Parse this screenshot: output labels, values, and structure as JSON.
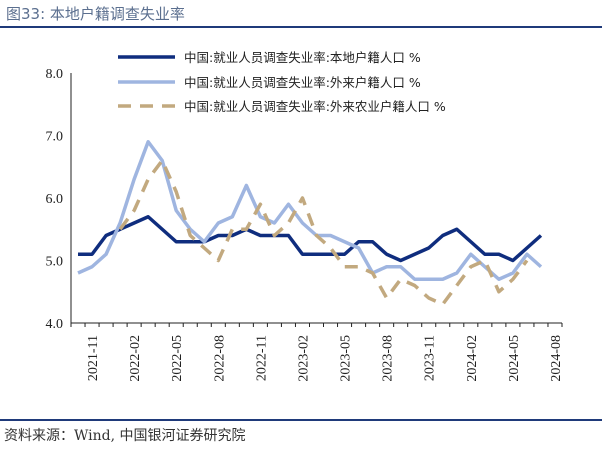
{
  "header": {
    "title": "图33:  本地户籍调查失业率"
  },
  "footer": {
    "source": "资料来源：Wind,  中国银河证券研究院"
  },
  "chart_data": {
    "type": "line",
    "title": "图33:  本地户籍调查失业率",
    "xlabel": "",
    "ylabel": "",
    "ylim": [
      4.0,
      8.0
    ],
    "yticks": [
      "4.0",
      "5.0",
      "6.0",
      "7.0",
      "8.0"
    ],
    "xtick_labels": [
      "2021-11",
      "2022-02",
      "2022-05",
      "2022-08",
      "2022-11",
      "2023-02",
      "2023-05",
      "2023-08",
      "2023-11",
      "2024-02",
      "2024-05",
      "2024-08"
    ],
    "x": [
      "2021-10",
      "2021-11",
      "2021-12",
      "2022-01",
      "2022-02",
      "2022-03",
      "2022-04",
      "2022-05",
      "2022-06",
      "2022-07",
      "2022-08",
      "2022-09",
      "2022-10",
      "2022-11",
      "2022-12",
      "2023-01",
      "2023-02",
      "2023-03",
      "2023-04",
      "2023-05",
      "2023-06",
      "2023-07",
      "2023-08",
      "2023-09",
      "2023-10",
      "2023-11",
      "2023-12",
      "2024-01",
      "2024-02",
      "2024-03",
      "2024-04",
      "2024-05",
      "2024-06",
      "2024-07",
      "2024-08"
    ],
    "legend_position": "top",
    "grid": false,
    "series": [
      {
        "name": "中国:就业人员调查失业率:本地户籍人口 %",
        "color": "#0f2d7e",
        "style": "solid",
        "values": [
          5.1,
          5.1,
          5.4,
          5.5,
          5.6,
          5.7,
          5.5,
          5.3,
          5.3,
          5.3,
          5.4,
          5.4,
          5.5,
          5.4,
          5.4,
          5.4,
          5.1,
          5.1,
          5.1,
          5.1,
          5.3,
          5.3,
          5.1,
          5.0,
          5.1,
          5.2,
          5.4,
          5.5,
          5.3,
          5.1,
          5.1,
          5.0,
          5.2,
          5.4,
          null
        ]
      },
      {
        "name": "中国:就业人员调查失业率:外来户籍人口 %",
        "color": "#9fb5e0",
        "style": "solid",
        "values": [
          4.8,
          4.9,
          5.1,
          5.6,
          6.3,
          6.9,
          6.6,
          5.8,
          5.5,
          5.3,
          5.6,
          5.7,
          6.2,
          5.7,
          5.6,
          5.9,
          5.6,
          5.4,
          5.4,
          5.3,
          5.2,
          4.8,
          4.9,
          4.9,
          4.7,
          4.7,
          4.7,
          4.8,
          5.1,
          4.9,
          4.7,
          4.8,
          5.1,
          4.9,
          null
        ]
      },
      {
        "name": "中国:就业人员调查失业率:外来农业户籍人口 %",
        "color": "#c2a97f",
        "style": "dashed",
        "values": [
          null,
          null,
          null,
          5.5,
          5.8,
          6.3,
          6.6,
          6.1,
          5.4,
          5.2,
          5.0,
          5.5,
          5.5,
          5.9,
          5.4,
          5.6,
          6.0,
          5.4,
          5.2,
          4.9,
          4.9,
          4.8,
          4.4,
          4.7,
          4.6,
          4.4,
          4.3,
          4.6,
          4.9,
          5.0,
          4.5,
          4.7,
          5.0,
          null,
          null
        ]
      }
    ]
  }
}
